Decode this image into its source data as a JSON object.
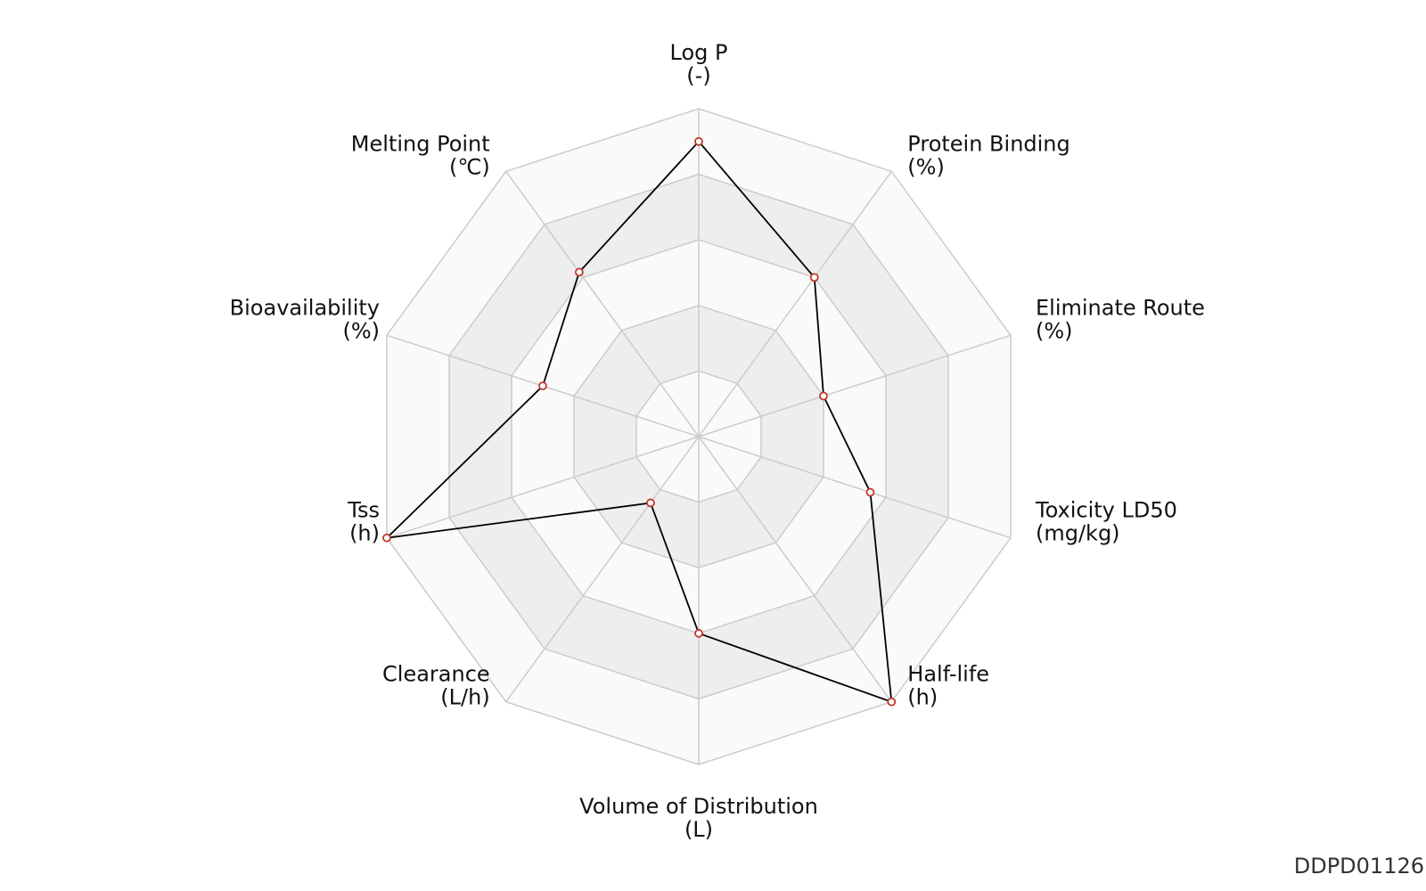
{
  "chart_data": {
    "type": "radar",
    "axes": [
      {
        "label": "Log P",
        "unit": "(-)"
      },
      {
        "label": "Protein Binding",
        "unit": "(%)"
      },
      {
        "label": "Eliminate Route",
        "unit": "(%)"
      },
      {
        "label": "Toxicity LD50",
        "unit": "(mg/kg)"
      },
      {
        "label": "Half-life",
        "unit": "(h)"
      },
      {
        "label": "Volume of Distribution",
        "unit": "(L)"
      },
      {
        "label": "Clearance",
        "unit": "(L/h)"
      },
      {
        "label": "Tss",
        "unit": "(h)"
      },
      {
        "label": "Bioavailability",
        "unit": "(%)"
      },
      {
        "label": "Melting Point",
        "unit": "(℃)"
      }
    ],
    "rings": 5,
    "range": [
      0,
      1
    ],
    "values": [
      0.9,
      0.6,
      0.4,
      0.55,
      1.0,
      0.6,
      0.25,
      1.0,
      0.5,
      0.62
    ],
    "grid": true,
    "colors": {
      "line": "#000000",
      "marker_edge": "#c0392b",
      "marker_fill": "#ffffff",
      "grid_line": "#cccccc",
      "band_dark": "#eeeeee",
      "band_light": "#fafafa"
    }
  },
  "footer": {
    "id": "DDPD01126"
  }
}
